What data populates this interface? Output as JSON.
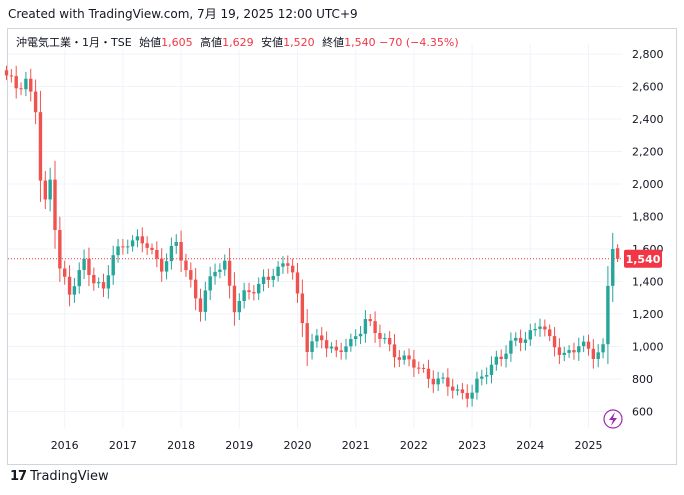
{
  "header": {
    "created_text": "Created with TradingView.com, 7月 19, 2025 12:00 UTC+9"
  },
  "legend": {
    "symbol": "沖電気工業・1月・TSE",
    "open_label": "始値",
    "open": "1,605",
    "high_label": "高値",
    "high": "1,629",
    "low_label": "安値",
    "low": "1,520",
    "close_label": "終値",
    "close": "1,540",
    "change": "−70 (−4.35%)"
  },
  "price_badge": "1,540",
  "footer": {
    "brand": "TradingView",
    "logo": "17"
  },
  "colors": {
    "up": "#26a69a",
    "down": "#ef5350",
    "badge": "#f23645",
    "grid": "#f0f3fa"
  },
  "icons": {
    "event": "lightning-icon"
  },
  "chart_data": {
    "type": "candlestick",
    "interval": "1M",
    "start": "2015-01",
    "end": "2025-07",
    "y_ticks": [
      600,
      800,
      1000,
      1200,
      1400,
      1600,
      1800,
      2000,
      2200,
      2400,
      2600,
      2800
    ],
    "y_tick_labels": [
      "600",
      "800",
      "1,000",
      "1,200",
      "1,400",
      "1,600",
      "1,800",
      "2,000",
      "2,200",
      "2,400",
      "2,600",
      "2,800"
    ],
    "x_labels": [
      "2016",
      "2017",
      "2018",
      "2019",
      "2020",
      "2021",
      "2022",
      "2023",
      "2024",
      "2025"
    ],
    "ylim": [
      450,
      2900
    ],
    "last_price": 1540,
    "grid": true,
    "anchors": [
      [
        "2015-01",
        2650
      ],
      [
        "2015-03",
        2600
      ],
      [
        "2015-05",
        2650
      ],
      [
        "2015-07",
        2450
      ],
      [
        "2015-08",
        2020
      ],
      [
        "2015-09",
        1870
      ],
      [
        "2015-10",
        2020
      ],
      [
        "2015-12",
        1500
      ],
      [
        "2016-02",
        1310
      ],
      [
        "2016-05",
        1520
      ],
      [
        "2016-09",
        1330
      ],
      [
        "2016-11",
        1560
      ],
      [
        "2017-02",
        1660
      ],
      [
        "2017-06",
        1620
      ],
      [
        "2017-09",
        1500
      ],
      [
        "2017-12",
        1620
      ],
      [
        "2018-03",
        1400
      ],
      [
        "2018-05",
        1240
      ],
      [
        "2018-08",
        1470
      ],
      [
        "2018-10",
        1520
      ],
      [
        "2018-12",
        1240
      ],
      [
        "2019-03",
        1330
      ],
      [
        "2019-06",
        1420
      ],
      [
        "2019-09",
        1450
      ],
      [
        "2019-11",
        1530
      ],
      [
        "2019-12",
        1480
      ],
      [
        "2020-03",
        980
      ],
      [
        "2020-06",
        1060
      ],
      [
        "2020-09",
        960
      ],
      [
        "2020-12",
        1010
      ],
      [
        "2021-03",
        1180
      ],
      [
        "2021-05",
        1080
      ],
      [
        "2021-08",
        1000
      ],
      [
        "2021-11",
        920
      ],
      [
        "2022-02",
        860
      ],
      [
        "2022-06",
        790
      ],
      [
        "2022-10",
        720
      ],
      [
        "2023-01",
        720
      ],
      [
        "2023-03",
        800
      ],
      [
        "2023-06",
        930
      ],
      [
        "2023-09",
        1000
      ],
      [
        "2023-12",
        1060
      ],
      [
        "2024-03",
        1150
      ],
      [
        "2024-05",
        1020
      ],
      [
        "2024-08",
        960
      ],
      [
        "2024-11",
        1000
      ],
      [
        "2025-02",
        960
      ],
      [
        "2025-04",
        1000
      ],
      [
        "2025-05",
        1380
      ],
      [
        "2025-06",
        1610
      ],
      [
        "2025-07",
        1540
      ]
    ],
    "last_candle": {
      "open": 1605,
      "high": 1629,
      "low": 1520,
      "close": 1540
    }
  }
}
